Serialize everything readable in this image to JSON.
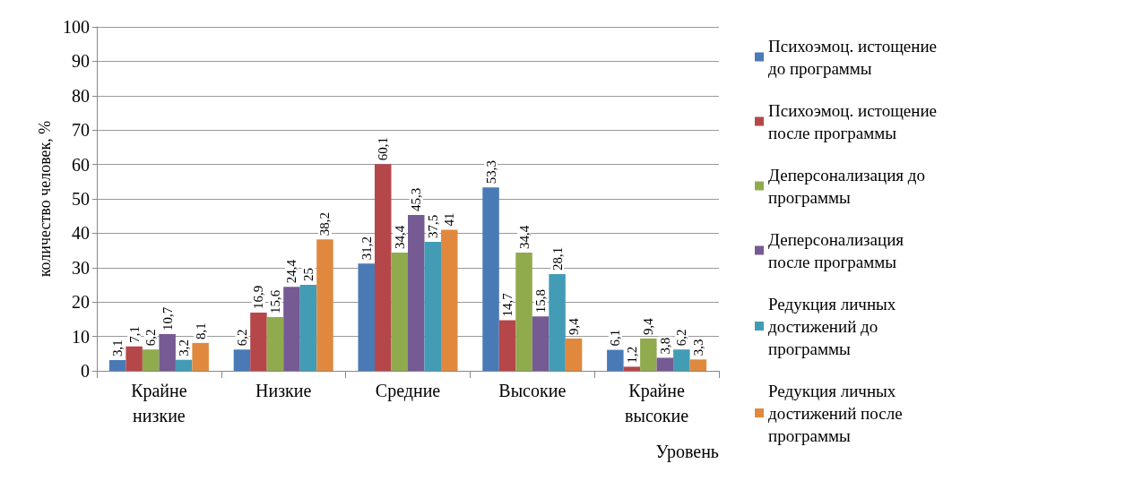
{
  "chart_data": {
    "type": "bar",
    "xlabel": "Уровень",
    "ylabel": "количество человек, %",
    "categories": [
      "Крайне низкие",
      "Низкие",
      "Средние",
      "Высокие",
      "Крайне высокие"
    ],
    "series": [
      {
        "name": "Психоэмоц. истощение до программы",
        "color": "#4a7ab5",
        "values": [
          3.1,
          6.2,
          31.2,
          53.3,
          6.1
        ],
        "value_labels": [
          "3,1",
          "6,2",
          "31,2",
          "53,3",
          "6,1"
        ]
      },
      {
        "name": "Психоэмоц. истощение после программы",
        "color": "#b5474a",
        "values": [
          7.1,
          16.9,
          60.1,
          14.7,
          1.2
        ],
        "value_labels": [
          "7,1",
          "16,9",
          "60,1",
          "14,7",
          "1,2"
        ]
      },
      {
        "name": "Деперсонализация до программы",
        "color": "#8fab4e",
        "values": [
          6.2,
          15.6,
          34.4,
          34.4,
          9.4
        ],
        "value_labels": [
          "6,2",
          "15,6",
          "34,4",
          "34,4",
          "9,4"
        ]
      },
      {
        "name": "Деперсонализация после программы",
        "color": "#765a94",
        "values": [
          10.7,
          24.4,
          45.3,
          15.8,
          3.8
        ],
        "value_labels": [
          "10,7",
          "24,4",
          "45,3",
          "15,8",
          "3,8"
        ]
      },
      {
        "name": "Редукция личных достижений до программы",
        "color": "#439cb5",
        "values": [
          3.2,
          25,
          37.5,
          28.1,
          6.2
        ],
        "value_labels": [
          "3,2",
          "25",
          "37,5",
          "28,1",
          "6,2"
        ]
      },
      {
        "name": "Редукция личных достижений после программы",
        "color": "#e0893e",
        "values": [
          8.1,
          38.2,
          41,
          9.4,
          3.3
        ],
        "value_labels": [
          "8,1",
          "38,2",
          "41",
          "9,4",
          "3,3"
        ]
      }
    ],
    "ylim": [
      0,
      100
    ],
    "yticks": [
      0,
      10,
      20,
      30,
      40,
      50,
      60,
      70,
      80,
      90,
      100
    ],
    "grid": "y",
    "legend": "right"
  }
}
